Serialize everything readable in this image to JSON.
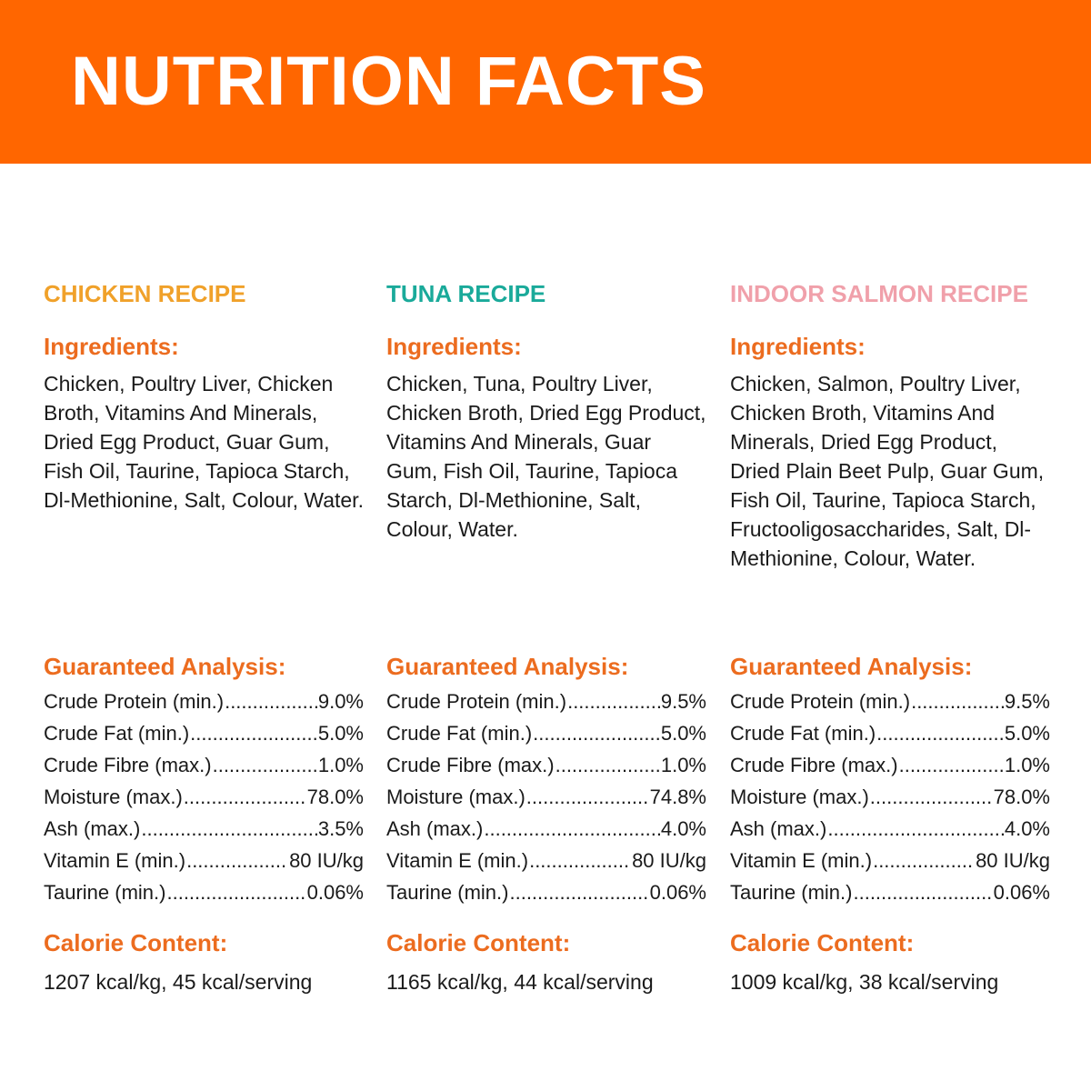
{
  "header": {
    "title": "NUTRITION FACTS"
  },
  "colors": {
    "banner": "#ff6600",
    "heading": "#ec6c1f",
    "recipe_titles": [
      "#f0a12a",
      "#1aaa9a",
      "#f0a0aa"
    ]
  },
  "recipes": [
    {
      "title": "CHICKEN RECIPE",
      "ingredients_heading": "Ingredients:",
      "ingredients": "Chicken, Poultry Liver, Chicken Broth, Vitamins And Minerals, Dried Egg Product, Guar Gum, Fish Oil, Taurine, Tapioca Starch, Dl-Methionine, Salt, Colour, Water.",
      "analysis_heading": "Guaranteed Analysis:",
      "analysis": [
        {
          "label": "Crude Protein (min.)",
          "value": "9.0%"
        },
        {
          "label": "Crude Fat (min.)",
          "value": "5.0%"
        },
        {
          "label": "Crude Fibre (max.)",
          "value": "1.0%"
        },
        {
          "label": "Moisture (max.)",
          "value": "78.0%"
        },
        {
          "label": "Ash (max.)",
          "value": "3.5%"
        },
        {
          "label": "Vitamin E (min.)",
          "value": "80 IU/kg"
        },
        {
          "label": "Taurine (min.)",
          "value": "0.06%"
        }
      ],
      "calorie_heading": "Calorie Content:",
      "calories": "1207 kcal/kg, 45 kcal/serving"
    },
    {
      "title": "TUNA RECIPE",
      "ingredients_heading": "Ingredients:",
      "ingredients": "Chicken, Tuna, Poultry Liver, Chicken Broth, Dried Egg Product, Vitamins And Minerals, Guar Gum, Fish Oil, Taurine, Tapioca Starch, Dl-Methionine, Salt, Colour, Water.",
      "analysis_heading": "Guaranteed Analysis:",
      "analysis": [
        {
          "label": "Crude Protein (min.)",
          "value": "9.5%"
        },
        {
          "label": "Crude Fat (min.)",
          "value": "5.0%"
        },
        {
          "label": "Crude Fibre (max.)",
          "value": "1.0%"
        },
        {
          "label": "Moisture (max.)",
          "value": "74.8%"
        },
        {
          "label": "Ash (max.)",
          "value": "4.0%"
        },
        {
          "label": "Vitamin E (min.)",
          "value": "80 IU/kg"
        },
        {
          "label": "Taurine (min.)",
          "value": "0.06%"
        }
      ],
      "calorie_heading": "Calorie Content:",
      "calories": "1165 kcal/kg, 44 kcal/serving"
    },
    {
      "title": "INDOOR SALMON RECIPE",
      "ingredients_heading": "Ingredients:",
      "ingredients": "Chicken, Salmon, Poultry Liver, Chicken Broth, Vitamins And Minerals, Dried Egg Product, Dried Plain Beet Pulp, Guar Gum, Fish Oil, Taurine, Tapioca Starch, Fructooligosaccharides, Salt, Dl-Methionine, Colour, Water.",
      "analysis_heading": "Guaranteed Analysis:",
      "analysis": [
        {
          "label": "Crude Protein (min.)",
          "value": "9.5%"
        },
        {
          "label": "Crude Fat (min.)",
          "value": "5.0%"
        },
        {
          "label": "Crude Fibre (max.)",
          "value": "1.0%"
        },
        {
          "label": "Moisture (max.)",
          "value": "78.0%"
        },
        {
          "label": "Ash (max.)",
          "value": "4.0%"
        },
        {
          "label": "Vitamin E (min.)",
          "value": "80 IU/kg"
        },
        {
          "label": "Taurine (min.)",
          "value": "0.06%"
        }
      ],
      "calorie_heading": "Calorie Content:",
      "calories": "1009 kcal/kg, 38 kcal/serving"
    }
  ]
}
